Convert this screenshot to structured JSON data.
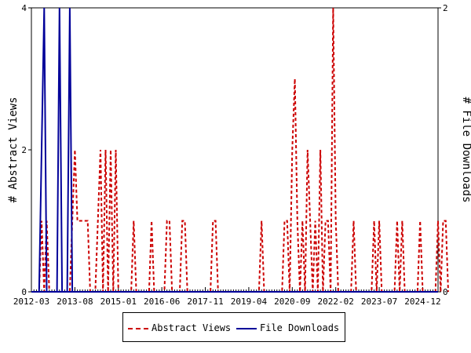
{
  "chart_data": {
    "type": "line",
    "xlabel": "",
    "ylabel": "# Abstract Views",
    "y2label": "# File Downloads",
    "x_tick_labels": [
      "2012-03",
      "2013-08",
      "2015-01",
      "2016-06",
      "2017-11",
      "2019-04",
      "2020-09",
      "2022-02",
      "2023-07",
      "2024-12"
    ],
    "xlim": [
      "2012-03",
      "2025-06"
    ],
    "ylim": [
      0,
      4
    ],
    "y_ticks": [
      0,
      2,
      4
    ],
    "y2lim": [
      0,
      2
    ],
    "y2_ticks": [
      0,
      2
    ],
    "grid": false,
    "legend_position": "bottom",
    "series": [
      {
        "name": "Abstract Views",
        "axis": "left",
        "color": "#cc0000",
        "style": "dashed",
        "points": [
          [
            "2012-03",
            0
          ],
          [
            "2012-06",
            0
          ],
          [
            "2012-07",
            1
          ],
          [
            "2012-08",
            0
          ],
          [
            "2012-09",
            1
          ],
          [
            "2012-10",
            0
          ],
          [
            "2013-06",
            0
          ],
          [
            "2013-07",
            1
          ],
          [
            "2013-08",
            2
          ],
          [
            "2013-09",
            1
          ],
          [
            "2013-10",
            1
          ],
          [
            "2013-11",
            1
          ],
          [
            "2013-12",
            1
          ],
          [
            "2014-01",
            1
          ],
          [
            "2014-02",
            0
          ],
          [
            "2014-04",
            0
          ],
          [
            "2014-05",
            1
          ],
          [
            "2014-06",
            2
          ],
          [
            "2014-07",
            0
          ],
          [
            "2014-08",
            2
          ],
          [
            "2014-09",
            0
          ],
          [
            "2014-10",
            2
          ],
          [
            "2014-11",
            0
          ],
          [
            "2014-12",
            2
          ],
          [
            "2015-01",
            0
          ],
          [
            "2015-06",
            0
          ],
          [
            "2015-07",
            1
          ],
          [
            "2015-08",
            0
          ],
          [
            "2016-01",
            0
          ],
          [
            "2016-02",
            1
          ],
          [
            "2016-03",
            0
          ],
          [
            "2016-07",
            0
          ],
          [
            "2016-08",
            1
          ],
          [
            "2016-09",
            1
          ],
          [
            "2016-10",
            0
          ],
          [
            "2017-01",
            0
          ],
          [
            "2017-02",
            1
          ],
          [
            "2017-03",
            1
          ],
          [
            "2017-04",
            0
          ],
          [
            "2018-01",
            0
          ],
          [
            "2018-02",
            1
          ],
          [
            "2018-03",
            1
          ],
          [
            "2018-04",
            0
          ],
          [
            "2019-08",
            0
          ],
          [
            "2019-09",
            1
          ],
          [
            "2019-10",
            0
          ],
          [
            "2020-05",
            0
          ],
          [
            "2020-06",
            1
          ],
          [
            "2020-07",
            1
          ],
          [
            "2020-08",
            0
          ],
          [
            "2020-09",
            2
          ],
          [
            "2020-10",
            3
          ],
          [
            "2020-11",
            1
          ],
          [
            "2020-12",
            0
          ],
          [
            "2021-01",
            1
          ],
          [
            "2021-02",
            0
          ],
          [
            "2021-03",
            2
          ],
          [
            "2021-04",
            1
          ],
          [
            "2021-05",
            0
          ],
          [
            "2021-06",
            1
          ],
          [
            "2021-07",
            0
          ],
          [
            "2021-08",
            2
          ],
          [
            "2021-09",
            0
          ],
          [
            "2021-10",
            1
          ],
          [
            "2021-11",
            1
          ],
          [
            "2021-12",
            0
          ],
          [
            "2022-01",
            4
          ],
          [
            "2022-02",
            1
          ],
          [
            "2022-03",
            0
          ],
          [
            "2022-08",
            0
          ],
          [
            "2022-09",
            1
          ],
          [
            "2022-10",
            0
          ],
          [
            "2023-04",
            0
          ],
          [
            "2023-05",
            1
          ],
          [
            "2023-06",
            0
          ],
          [
            "2023-07",
            1
          ],
          [
            "2023-08",
            0
          ],
          [
            "2024-01",
            0
          ],
          [
            "2024-02",
            1
          ],
          [
            "2024-03",
            0
          ],
          [
            "2024-04",
            1
          ],
          [
            "2024-05",
            0
          ],
          [
            "2024-10",
            0
          ],
          [
            "2024-11",
            1
          ],
          [
            "2024-12",
            0
          ],
          [
            "2025-05",
            0
          ],
          [
            "2025-06",
            1
          ],
          [
            "2025-07",
            0
          ],
          [
            "2025-08",
            1
          ],
          [
            "2025-09",
            1
          ],
          [
            "2025-10",
            0
          ]
        ]
      },
      {
        "name": "File Downloads",
        "axis": "right",
        "color": "#000099",
        "style": "solid",
        "points": [
          [
            "2012-03",
            0
          ],
          [
            "2012-06",
            0
          ],
          [
            "2012-07",
            1
          ],
          [
            "2012-08",
            2
          ],
          [
            "2012-09",
            0
          ],
          [
            "2013-01",
            0
          ],
          [
            "2013-02",
            2
          ],
          [
            "2013-03",
            0
          ],
          [
            "2013-05",
            0
          ],
          [
            "2013-06",
            2
          ],
          [
            "2013-07",
            0
          ]
        ]
      }
    ]
  }
}
